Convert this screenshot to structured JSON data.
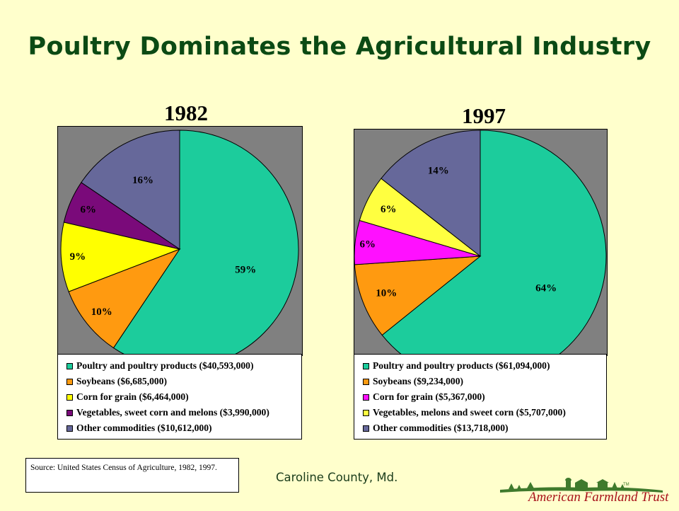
{
  "slide": {
    "title": "Poultry Dominates the Agricultural Industry",
    "source": "Source: United States Census of Agriculture, 1982, 1997.",
    "footer": "Caroline County, Md.",
    "logo_text": "American Farmland Trust",
    "logo_mark": "TM"
  },
  "chart_data": [
    {
      "type": "pie",
      "title": "1982",
      "start_angle_deg": 0,
      "direction": "clockwise",
      "slices": [
        {
          "label": "Poultry and poultry products ($40,593,000)",
          "value": 40593000,
          "percent_label": "59%",
          "color": "#1ccc9c"
        },
        {
          "label": "Soybeans ($6,685,000)",
          "value": 6685000,
          "percent_label": "10%",
          "color": "#ff9a10"
        },
        {
          "label": "Corn for grain ($6,464,000)",
          "value": 6464000,
          "percent_label": "9%",
          "color": "#ffff00"
        },
        {
          "label": "Vegetables, sweet corn and melons ($3,990,000)",
          "value": 3990000,
          "percent_label": "6%",
          "color": "#7a0a7a"
        },
        {
          "label": "Other commodities ($10,612,000)",
          "value": 10612000,
          "percent_label": "16%",
          "color": "#66689a"
        }
      ],
      "legend": "bottom"
    },
    {
      "type": "pie",
      "title": "1997",
      "start_angle_deg": 0,
      "direction": "clockwise",
      "slices": [
        {
          "label": "Poultry and poultry products ($61,094,000)",
          "value": 61094000,
          "percent_label": "64%",
          "color": "#1ccc9c"
        },
        {
          "label": "Soybeans ($9,234,000)",
          "value": 9234000,
          "percent_label": "10%",
          "color": "#ff9a10"
        },
        {
          "label": "Corn for grain ($5,367,000)",
          "value": 5367000,
          "percent_label": "6%",
          "color": "#ff10ff"
        },
        {
          "label": "Vegetables, melons and sweet corn ($5,707,000)",
          "value": 5707000,
          "percent_label": "6%",
          "color": "#ffff40"
        },
        {
          "label": "Other commodities ($13,718,000)",
          "value": 13718000,
          "percent_label": "14%",
          "color": "#66689a"
        }
      ],
      "legend": "bottom"
    }
  ]
}
